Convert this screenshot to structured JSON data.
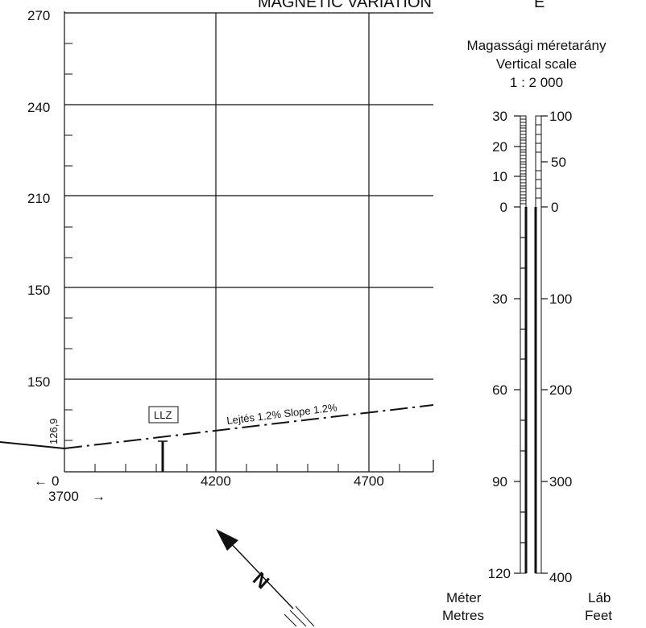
{
  "header": {
    "magnetic_variation_label": "MAGNETIC VARIATION",
    "magnetic_variation_value": "E"
  },
  "vertical_axis": {
    "labels": [
      "270",
      "240",
      "210",
      "150",
      "150"
    ]
  },
  "horizontal_axis": {
    "zero_label": "0",
    "arrow_left_label": "←",
    "offset_label": "3700",
    "arrow_right_label": "→",
    "labels": [
      "4200",
      "4700"
    ]
  },
  "threshold_elevation": "126,9",
  "llz_label": "LLZ",
  "slope_label": "Lejtés 1.2%   Slope 1.2%",
  "scale": {
    "title_hu": "Magassági méretarány",
    "title_en": "Vertical scale",
    "ratio": "1  :  2 000",
    "metres_labels": [
      "30",
      "20",
      "10",
      "0",
      "30",
      "60",
      "90",
      "120"
    ],
    "feet_labels": [
      "100",
      "50",
      "0",
      "100",
      "200",
      "300",
      "400"
    ],
    "metres_unit_hu": "Méter",
    "metres_unit_en": "Metres",
    "feet_unit_hu": "Láb",
    "feet_unit_en": "Feet"
  },
  "north_arrow_label": "N"
}
